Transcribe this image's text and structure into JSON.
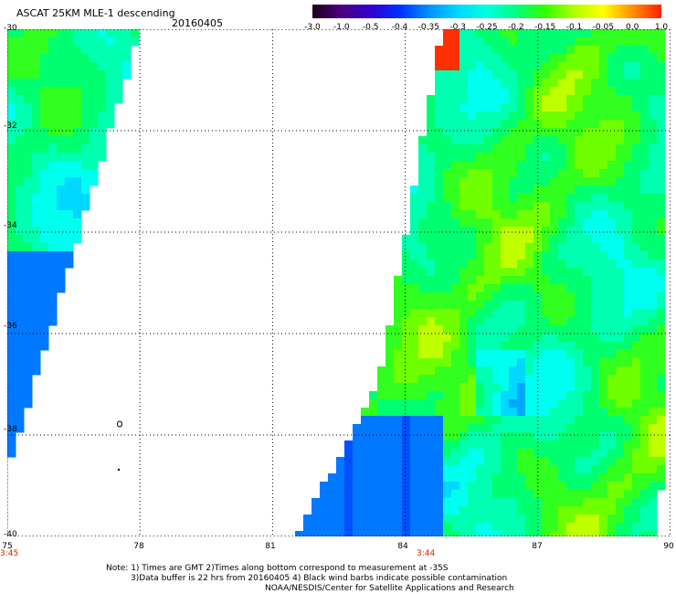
{
  "header": {
    "title": "ASCAT 25KM MLE-1 descending",
    "date": "20160405"
  },
  "colorbar": {
    "labels": [
      "-3.0",
      "-1.0",
      "-0.5",
      "-0.4",
      "-0.35",
      "-0.3",
      "-0.25",
      "-0.2",
      "-0.15",
      "-0.1",
      "-0.05",
      "0.0",
      "1.0"
    ],
    "colors": [
      "#200018",
      "#4a0080",
      "#3000d0",
      "#0030ff",
      "#0090ff",
      "#00d8ff",
      "#00ffe0",
      "#00ff80",
      "#30ff00",
      "#b0ff00",
      "#ffff00",
      "#ff9000",
      "#ff2000"
    ]
  },
  "map": {
    "lon_labels": [
      "75",
      "78",
      "81",
      "84",
      "87",
      "90"
    ],
    "lat_labels": [
      "-30",
      "-32",
      "-34",
      "-36",
      "-38",
      "-40"
    ],
    "lon_range": [
      75,
      90
    ],
    "lat_range": [
      -30,
      -40
    ],
    "grid": true,
    "pass_times": [
      {
        "label": "3:45",
        "lon": 75
      },
      {
        "label": "3:44",
        "lon": 84.5
      }
    ]
  },
  "notes": {
    "line1": "Note: 1) Times are GMT 2)Times along bottom correspond to measurement at -35S",
    "line2": "3)Data buffer is 22 hrs from 20160405 4) Black wind barbs indicate possible contamination",
    "line3": "NOAA/NESDIS/Center for Satellite Applications and Research"
  }
}
